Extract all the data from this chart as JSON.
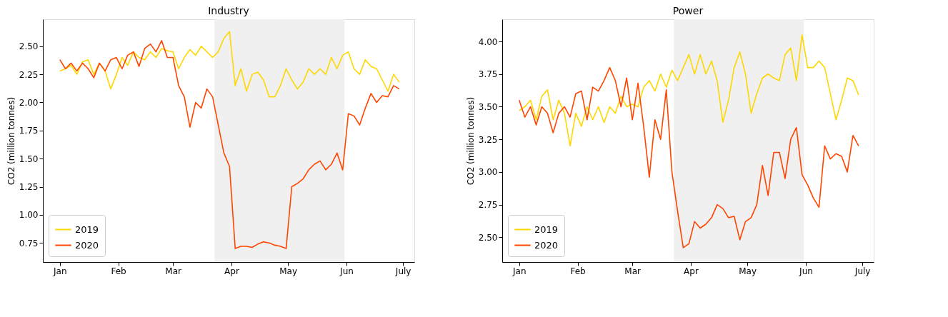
{
  "chart_data": [
    {
      "type": "line",
      "title": "Industry",
      "ylabel": "CO2 (million tonnes)",
      "legend": "bottom left",
      "grid": false,
      "x": [
        "2020-01-01",
        "2020-01-04",
        "2020-01-07",
        "2020-01-10",
        "2020-01-13",
        "2020-01-16",
        "2020-01-19",
        "2020-01-22",
        "2020-01-25",
        "2020-01-28",
        "2020-01-31",
        "2020-02-03",
        "2020-02-06",
        "2020-02-09",
        "2020-02-12",
        "2020-02-15",
        "2020-02-18",
        "2020-02-21",
        "2020-02-24",
        "2020-02-27",
        "2020-03-01",
        "2020-03-04",
        "2020-03-07",
        "2020-03-10",
        "2020-03-13",
        "2020-03-16",
        "2020-03-19",
        "2020-03-22",
        "2020-03-25",
        "2020-03-28",
        "2020-03-31",
        "2020-04-03",
        "2020-04-06",
        "2020-04-09",
        "2020-04-12",
        "2020-04-15",
        "2020-04-18",
        "2020-04-21",
        "2020-04-24",
        "2020-04-27",
        "2020-04-30",
        "2020-05-03",
        "2020-05-06",
        "2020-05-09",
        "2020-05-12",
        "2020-05-15",
        "2020-05-18",
        "2020-05-21",
        "2020-05-24",
        "2020-05-27",
        "2020-05-30",
        "2020-06-02",
        "2020-06-05",
        "2020-06-08",
        "2020-06-11",
        "2020-06-14",
        "2020-06-17",
        "2020-06-20",
        "2020-06-23",
        "2020-06-26",
        "2020-06-29"
      ],
      "series": [
        {
          "name": "2019",
          "color": "#ffd700",
          "values": [
            2.28,
            2.3,
            2.33,
            2.25,
            2.36,
            2.38,
            2.25,
            2.35,
            2.28,
            2.12,
            2.25,
            2.4,
            2.33,
            2.45,
            2.4,
            2.38,
            2.45,
            2.4,
            2.48,
            2.46,
            2.45,
            2.3,
            2.4,
            2.47,
            2.42,
            2.5,
            2.45,
            2.4,
            2.45,
            2.57,
            2.63,
            2.15,
            2.3,
            2.1,
            2.25,
            2.27,
            2.2,
            2.05,
            2.05,
            2.15,
            2.3,
            2.2,
            2.12,
            2.18,
            2.3,
            2.25,
            2.3,
            2.25,
            2.4,
            2.3,
            2.42,
            2.45,
            2.3,
            2.25,
            2.38,
            2.32,
            2.3,
            2.2,
            2.1,
            2.25,
            2.18
          ]
        },
        {
          "name": "2020",
          "color": "#ff4500",
          "values": [
            2.38,
            2.3,
            2.35,
            2.28,
            2.35,
            2.3,
            2.22,
            2.35,
            2.28,
            2.38,
            2.4,
            2.3,
            2.42,
            2.45,
            2.32,
            2.48,
            2.52,
            2.45,
            2.55,
            2.4,
            2.4,
            2.15,
            2.05,
            1.78,
            2.0,
            1.95,
            2.12,
            2.05,
            1.8,
            1.55,
            1.43,
            0.7,
            0.72,
            0.72,
            0.71,
            0.74,
            0.76,
            0.75,
            0.73,
            0.72,
            0.7,
            1.25,
            1.28,
            1.32,
            1.4,
            1.45,
            1.48,
            1.4,
            1.45,
            1.55,
            1.4,
            1.9,
            1.88,
            1.8,
            1.95,
            2.08,
            2.0,
            2.06,
            2.05,
            2.15,
            2.12
          ]
        }
      ],
      "xlim": [
        "2019-12-23",
        "2020-07-07"
      ],
      "xticks": [
        {
          "value": "2020-01-01",
          "label": "Jan"
        },
        {
          "value": "2020-02-01",
          "label": "Feb"
        },
        {
          "value": "2020-03-01",
          "label": "Mar"
        },
        {
          "value": "2020-04-01",
          "label": "Apr"
        },
        {
          "value": "2020-05-01",
          "label": "May"
        },
        {
          "value": "2020-06-01",
          "label": "Jun"
        },
        {
          "value": "2020-07-01",
          "label": "July"
        }
      ],
      "ylim": [
        0.58,
        2.74
      ],
      "yticks": [
        {
          "value": 0.75,
          "label": "0.75"
        },
        {
          "value": 1.0,
          "label": "1.00"
        },
        {
          "value": 1.25,
          "label": "1.25"
        },
        {
          "value": 1.5,
          "label": "1.50"
        },
        {
          "value": 1.75,
          "label": "1.75"
        },
        {
          "value": 2.0,
          "label": "2.00"
        },
        {
          "value": 2.25,
          "label": "2.25"
        },
        {
          "value": 2.5,
          "label": "2.50"
        }
      ],
      "bands": [
        {
          "axis": "x",
          "from": "2020-03-23",
          "to": "2020-05-31",
          "color": "#f0f0f0"
        }
      ]
    },
    {
      "type": "line",
      "title": "Power",
      "ylabel": "CO2 (million tonnes)",
      "legend": "bottom left",
      "grid": false,
      "x": [
        "2020-01-01",
        "2020-01-04",
        "2020-01-07",
        "2020-01-10",
        "2020-01-13",
        "2020-01-16",
        "2020-01-19",
        "2020-01-22",
        "2020-01-25",
        "2020-01-28",
        "2020-01-31",
        "2020-02-03",
        "2020-02-06",
        "2020-02-09",
        "2020-02-12",
        "2020-02-15",
        "2020-02-18",
        "2020-02-21",
        "2020-02-24",
        "2020-02-27",
        "2020-03-01",
        "2020-03-04",
        "2020-03-07",
        "2020-03-10",
        "2020-03-13",
        "2020-03-16",
        "2020-03-19",
        "2020-03-22",
        "2020-03-25",
        "2020-03-28",
        "2020-03-31",
        "2020-04-03",
        "2020-04-06",
        "2020-04-09",
        "2020-04-12",
        "2020-04-15",
        "2020-04-18",
        "2020-04-21",
        "2020-04-24",
        "2020-04-27",
        "2020-04-30",
        "2020-05-03",
        "2020-05-06",
        "2020-05-09",
        "2020-05-12",
        "2020-05-15",
        "2020-05-18",
        "2020-05-21",
        "2020-05-24",
        "2020-05-27",
        "2020-05-30",
        "2020-06-02",
        "2020-06-05",
        "2020-06-08",
        "2020-06-11",
        "2020-06-14",
        "2020-06-17",
        "2020-06-20",
        "2020-06-23",
        "2020-06-26",
        "2020-06-29"
      ],
      "series": [
        {
          "name": "2019",
          "color": "#ffd700",
          "values": [
            3.47,
            3.5,
            3.55,
            3.4,
            3.58,
            3.63,
            3.4,
            3.55,
            3.45,
            3.2,
            3.45,
            3.35,
            3.5,
            3.4,
            3.5,
            3.38,
            3.5,
            3.45,
            3.58,
            3.5,
            3.52,
            3.5,
            3.65,
            3.7,
            3.62,
            3.75,
            3.65,
            3.78,
            3.7,
            3.8,
            3.9,
            3.75,
            3.9,
            3.75,
            3.85,
            3.7,
            3.38,
            3.55,
            3.8,
            3.92,
            3.75,
            3.45,
            3.6,
            3.72,
            3.75,
            3.72,
            3.7,
            3.9,
            3.95,
            3.7,
            4.05,
            3.8,
            3.8,
            3.85,
            3.8,
            3.6,
            3.4,
            3.55,
            3.72,
            3.7,
            3.59
          ]
        },
        {
          "name": "2020",
          "color": "#ff4500",
          "values": [
            3.55,
            3.42,
            3.5,
            3.36,
            3.5,
            3.45,
            3.3,
            3.45,
            3.5,
            3.42,
            3.6,
            3.62,
            3.4,
            3.65,
            3.62,
            3.7,
            3.8,
            3.7,
            3.5,
            3.72,
            3.4,
            3.68,
            3.35,
            2.96,
            3.4,
            3.25,
            3.63,
            3.0,
            2.7,
            2.42,
            2.45,
            2.62,
            2.57,
            2.6,
            2.65,
            2.75,
            2.72,
            2.65,
            2.66,
            2.48,
            2.62,
            2.65,
            2.75,
            3.05,
            2.82,
            3.15,
            3.15,
            2.95,
            3.25,
            3.34,
            2.98,
            2.9,
            2.8,
            2.73,
            3.2,
            3.1,
            3.14,
            3.12,
            3.0,
            3.28,
            3.2
          ]
        }
      ],
      "xlim": [
        "2019-12-23",
        "2020-07-07"
      ],
      "xticks": [
        {
          "value": "2020-01-01",
          "label": "Jan"
        },
        {
          "value": "2020-02-01",
          "label": "Feb"
        },
        {
          "value": "2020-03-01",
          "label": "Mar"
        },
        {
          "value": "2020-04-01",
          "label": "Apr"
        },
        {
          "value": "2020-05-01",
          "label": "May"
        },
        {
          "value": "2020-06-01",
          "label": "Jun"
        },
        {
          "value": "2020-07-01",
          "label": "July"
        }
      ],
      "ylim": [
        2.31,
        4.17
      ],
      "yticks": [
        {
          "value": 2.5,
          "label": "2.50"
        },
        {
          "value": 2.75,
          "label": "2.75"
        },
        {
          "value": 3.0,
          "label": "3.00"
        },
        {
          "value": 3.25,
          "label": "3.25"
        },
        {
          "value": 3.5,
          "label": "3.50"
        },
        {
          "value": 3.75,
          "label": "3.75"
        },
        {
          "value": 4.0,
          "label": "4.00"
        }
      ],
      "bands": [
        {
          "axis": "x",
          "from": "2020-03-23",
          "to": "2020-05-31",
          "color": "#f0f0f0"
        }
      ]
    }
  ]
}
